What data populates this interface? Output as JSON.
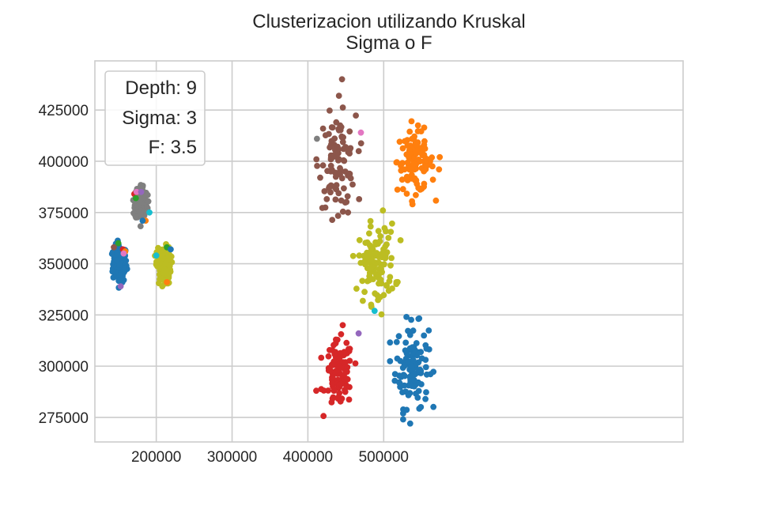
{
  "chart_data": {
    "type": "scatter",
    "title": "Clusterizacion utilizando Kruskal",
    "subtitle": "Sigma o F",
    "xlabel": "",
    "ylabel": "",
    "xlim": [
      119000,
      895000
    ],
    "ylim": [
      263000,
      449000
    ],
    "x_ticks": [
      200000,
      300000,
      400000,
      500000
    ],
    "x_tick_labels": [
      "200000",
      "300000",
      "400000",
      "500000"
    ],
    "y_ticks": [
      275000,
      300000,
      325000,
      350000,
      375000,
      400000,
      425000
    ],
    "y_tick_labels": [
      "275000",
      "300000",
      "325000",
      "350000",
      "375000",
      "400000",
      "425000"
    ],
    "grid": true,
    "legend_placement": "top-left",
    "annotation_lines": [
      "Depth: 9",
      "Sigma: 3",
      "F: 3.5"
    ],
    "colors": {
      "blue": "#1f77b4",
      "orange": "#ff7f0e",
      "green": "#2ca02c",
      "red": "#d62728",
      "purple": "#9467bd",
      "brown": "#8c564b",
      "pink": "#e377c2",
      "gray": "#7f7f7f",
      "olive": "#bcbd22",
      "cyan": "#17becf"
    },
    "series": [
      {
        "color": "#1f77b4",
        "clusters": [
          {
            "cx": 152000,
            "cy": 350000,
            "sx": 4500,
            "sy": 4500,
            "n": 160
          },
          {
            "cx": 537000,
            "cy": 300000,
            "sx": 11000,
            "sy": 10000,
            "n": 110
          }
        ]
      },
      {
        "color": "#ff7f0e",
        "clusters": [
          {
            "cx": 542000,
            "cy": 400000,
            "sx": 12000,
            "sy": 7500,
            "n": 110
          }
        ]
      },
      {
        "color": "#d62728",
        "clusters": [
          {
            "cx": 441000,
            "cy": 296000,
            "sx": 9000,
            "sy": 8000,
            "n": 100
          }
        ]
      },
      {
        "color": "#8c564b",
        "clusters": [
          {
            "cx": 439000,
            "cy": 400000,
            "sx": 12000,
            "sy": 11000,
            "n": 95
          }
        ]
      },
      {
        "color": "#7f7f7f",
        "clusters": [
          {
            "cx": 180000,
            "cy": 380000,
            "sx": 4000,
            "sy": 4500,
            "n": 140
          }
        ]
      },
      {
        "color": "#bcbd22",
        "clusters": [
          {
            "cx": 210000,
            "cy": 349000,
            "sx": 4500,
            "sy": 4500,
            "n": 160
          },
          {
            "cx": 491000,
            "cy": 350000,
            "sx": 12000,
            "sy": 9500,
            "n": 110
          }
        ]
      }
    ],
    "outliers": [
      {
        "x": 144000,
        "y": 358000,
        "color": "#8c564b"
      },
      {
        "x": 150000,
        "y": 360000,
        "color": "#2ca02c"
      },
      {
        "x": 156000,
        "y": 357000,
        "color": "#d62728"
      },
      {
        "x": 159000,
        "y": 356000,
        "color": "#ff7f0e"
      },
      {
        "x": 157000,
        "y": 355000,
        "color": "#e377c2"
      },
      {
        "x": 153000,
        "y": 339000,
        "color": "#9467bd"
      },
      {
        "x": 171000,
        "y": 384000,
        "color": "#d62728"
      },
      {
        "x": 174000,
        "y": 385000,
        "color": "#e377c2"
      },
      {
        "x": 173000,
        "y": 382000,
        "color": "#2ca02c"
      },
      {
        "x": 180000,
        "y": 385000,
        "color": "#9467bd"
      },
      {
        "x": 186000,
        "y": 371000,
        "color": "#ff7f0e"
      },
      {
        "x": 191000,
        "y": 375000,
        "color": "#17becf"
      },
      {
        "x": 182000,
        "y": 371000,
        "color": "#1f77b4"
      },
      {
        "x": 200000,
        "y": 354000,
        "color": "#17becf"
      },
      {
        "x": 214000,
        "y": 358000,
        "color": "#2ca02c"
      },
      {
        "x": 219000,
        "y": 357000,
        "color": "#1f77b4"
      },
      {
        "x": 214000,
        "y": 341000,
        "color": "#ff7f0e"
      },
      {
        "x": 412000,
        "y": 411000,
        "color": "#7f7f7f"
      },
      {
        "x": 470000,
        "y": 414000,
        "color": "#e377c2"
      },
      {
        "x": 467000,
        "y": 316000,
        "color": "#9467bd"
      },
      {
        "x": 488000,
        "y": 327000,
        "color": "#17becf"
      },
      {
        "x": 445000,
        "y": 440000,
        "color": "#8c564b"
      },
      {
        "x": 441000,
        "y": 432000,
        "color": "#8c564b"
      },
      {
        "x": 574000,
        "y": 402000,
        "color": "#ff7f0e"
      },
      {
        "x": 573000,
        "y": 396000,
        "color": "#ff7f0e"
      },
      {
        "x": 565000,
        "y": 391000,
        "color": "#ff7f0e"
      },
      {
        "x": 538000,
        "y": 379000,
        "color": "#ff7f0e"
      },
      {
        "x": 411000,
        "y": 288000,
        "color": "#d62728"
      },
      {
        "x": 446000,
        "y": 320000,
        "color": "#d62728"
      },
      {
        "x": 453000,
        "y": 375000,
        "color": "#8c564b"
      },
      {
        "x": 420000,
        "y": 398000,
        "color": "#8c564b"
      },
      {
        "x": 499000,
        "y": 376000,
        "color": "#bcbd22"
      },
      {
        "x": 530000,
        "y": 324000,
        "color": "#1f77b4"
      },
      {
        "x": 535000,
        "y": 272000,
        "color": "#1f77b4"
      },
      {
        "x": 549000,
        "y": 280000,
        "color": "#1f77b4"
      }
    ]
  }
}
